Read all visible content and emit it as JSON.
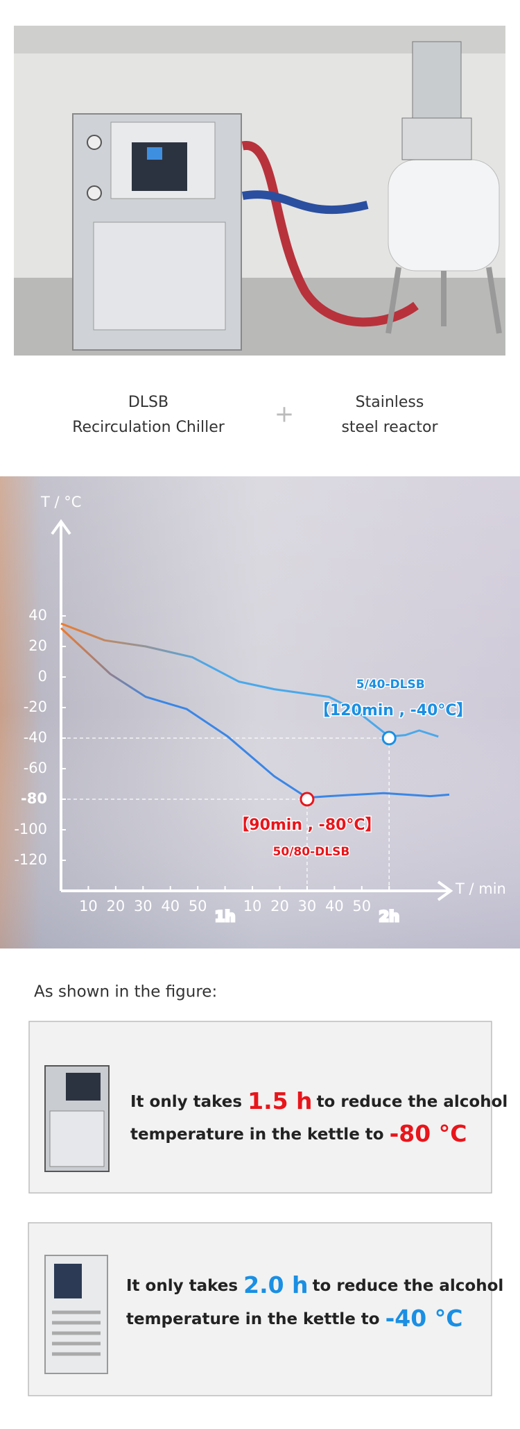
{
  "photo": {
    "captions": [
      {
        "line1": "DLSB",
        "line2": "Recirculation Chiller"
      },
      {
        "line1": "Stainless",
        "line2": "steel reactor"
      }
    ],
    "joiner": "+"
  },
  "chart_data": {
    "type": "line",
    "xlabel": "T / min",
    "ylabel": "T / °C",
    "xlim": [
      0,
      142
    ],
    "ylim": [
      -140,
      100
    ],
    "xticks": [
      10,
      20,
      30,
      40,
      50,
      {
        "value": 60,
        "label": "1h",
        "color": "#e8151b"
      },
      {
        "value": 70,
        "label": "10"
      },
      {
        "value": 80,
        "label": "20"
      },
      {
        "value": 90,
        "label": "30"
      },
      {
        "value": 100,
        "label": "40"
      },
      {
        "value": 110,
        "label": "50"
      },
      {
        "value": 120,
        "label": "2h",
        "color": "#1a8fe3"
      }
    ],
    "yticks": [
      40,
      20,
      0,
      -20,
      -40,
      -60,
      {
        "value": -80,
        "label": "-80",
        "bold": true
      },
      -100,
      -120
    ],
    "series": [
      {
        "name": "5/40-DLSB",
        "color": "#4aa8ea",
        "start_color": "#f07a2a",
        "x": [
          0,
          16,
          31,
          48,
          65,
          78,
          98,
          108,
          120,
          126,
          131,
          138
        ],
        "values": [
          35,
          24,
          20,
          13,
          -3,
          -8,
          -13,
          -22,
          -39,
          -38,
          -35,
          -39
        ]
      },
      {
        "name": "50/80-DLSB",
        "color": "#3a86e6",
        "start_color": "#f07a2a",
        "x": [
          0,
          18,
          31,
          46,
          61,
          78,
          90,
          98,
          118,
          135,
          142
        ],
        "values": [
          32,
          2,
          -13,
          -21,
          -39,
          -65,
          -79,
          -78,
          -76,
          -78,
          -77
        ]
      }
    ],
    "highlights": [
      {
        "x": 120,
        "y": -40,
        "label": "【120min , -40°C】",
        "name": "5/40-DLSB",
        "color": "#1a8fe3",
        "position": "above"
      },
      {
        "x": 90,
        "y": -80,
        "label": "【90min , -80°C】",
        "name": "50/80-DLSB",
        "color": "#e8151b",
        "position": "below"
      }
    ]
  },
  "notes": {
    "intro": "As shown in the figure:",
    "items": [
      {
        "prefix": "It only takes",
        "time": "1.5 h",
        "middle": "to reduce the alcohol",
        "line2": "temperature in the kettle to",
        "temp": "-80 °C",
        "color": "#e8151b"
      },
      {
        "prefix": "It only takes",
        "time": "2.0 h",
        "middle": "to reduce the alcohol",
        "line2": "temperature in the kettle to",
        "temp": "-40 °C",
        "color": "#1a8fe3"
      }
    ]
  }
}
